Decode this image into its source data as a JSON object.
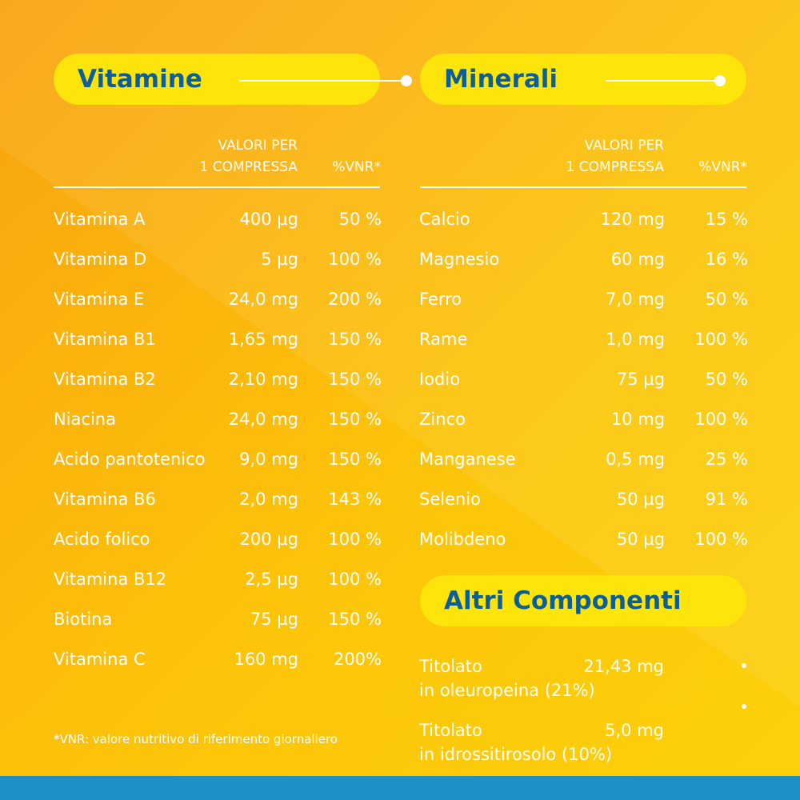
{
  "colors": {
    "pill": "#fde40a",
    "title": "#0b5e96",
    "bottom_bar": "#1e90c8"
  },
  "vitamins": {
    "title": "Vitamine",
    "head_value_1": "VALORI PER",
    "head_value_2": "1 COMPRESSA",
    "head_vnr": "%VNR*",
    "rows": [
      {
        "name": "Vitamina A",
        "value": "400 µg",
        "vnr": "50 %"
      },
      {
        "name": "Vitamina D",
        "value": "5 µg",
        "vnr": "100 %"
      },
      {
        "name": "Vitamina E",
        "value": "24,0 mg",
        "vnr": "200 %"
      },
      {
        "name": "Vitamina B1",
        "value": "1,65 mg",
        "vnr": "150 %"
      },
      {
        "name": "Vitamina B2",
        "value": "2,10 mg",
        "vnr": "150 %"
      },
      {
        "name": "Niacina",
        "value": "24,0 mg",
        "vnr": "150 %"
      },
      {
        "name": "Acido pantotenico",
        "value": "9,0 mg",
        "vnr": "150 %"
      },
      {
        "name": "Vitamina B6",
        "value": "2,0 mg",
        "vnr": "143 %"
      },
      {
        "name": "Acido folico",
        "value": "200 µg",
        "vnr": "100 %"
      },
      {
        "name": "Vitamina B12",
        "value": "2,5 µg",
        "vnr": "100 %"
      },
      {
        "name": "Biotina",
        "value": "75 µg",
        "vnr": "150 %"
      },
      {
        "name": "Vitamina C",
        "value": "160 mg",
        "vnr": "200%"
      }
    ]
  },
  "minerals": {
    "title": "Minerali",
    "head_value_1": "VALORI PER",
    "head_value_2": "1 COMPRESSA",
    "head_vnr": "%VNR*",
    "rows": [
      {
        "name": "Calcio",
        "value": "120 mg",
        "vnr": "15 %"
      },
      {
        "name": "Magnesio",
        "value": "60 mg",
        "vnr": "16 %"
      },
      {
        "name": "Ferro",
        "value": "7,0 mg",
        "vnr": "50 %"
      },
      {
        "name": "Rame",
        "value": "1,0 mg",
        "vnr": "100 %"
      },
      {
        "name": "Iodio",
        "value": "75 µg",
        "vnr": "50 %"
      },
      {
        "name": "Zinco",
        "value": "10 mg",
        "vnr": "100 %"
      },
      {
        "name": "Manganese",
        "value": "0,5 mg",
        "vnr": "25 %"
      },
      {
        "name": "Selenio",
        "value": "50 µg",
        "vnr": "91 %"
      },
      {
        "name": "Molibdeno",
        "value": "50 µg",
        "vnr": "100 %"
      }
    ]
  },
  "others": {
    "title": "Altri Componenti",
    "rows": [
      {
        "line1": "Titolato",
        "line2": "in oleuropeina (21%)",
        "value": "21,43 mg"
      },
      {
        "line1": "Titolato",
        "line2": "in idrossitirosolo (10%)",
        "value": "5,0 mg"
      }
    ]
  },
  "footnote": "*VNR: valore nutritivo di riferimento giornaliero"
}
